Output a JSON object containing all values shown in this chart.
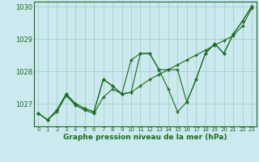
{
  "title": "Graphe pression niveau de la mer (hPa)",
  "bg_color": "#cce9f0",
  "grid_color": "#99ccbb",
  "line_color": "#1a6b1a",
  "marker_color": "#1a6b1a",
  "hours": [
    0,
    1,
    2,
    3,
    4,
    5,
    6,
    7,
    8,
    9,
    10,
    11,
    12,
    13,
    14,
    15,
    16,
    17,
    18,
    19,
    20,
    21,
    22,
    23
  ],
  "line1": [
    1026.7,
    1026.5,
    1026.8,
    1027.3,
    1027.0,
    1026.85,
    1026.75,
    1027.75,
    1027.55,
    1027.3,
    1027.35,
    1028.55,
    1028.55,
    1028.05,
    1027.45,
    1026.75,
    1027.05,
    1027.75,
    1028.55,
    1028.85,
    1028.55,
    1029.15,
    1029.55,
    1030.0
  ],
  "line2": [
    1026.7,
    1026.5,
    1026.8,
    1027.3,
    1027.0,
    1026.85,
    1026.75,
    1027.75,
    1027.55,
    1027.3,
    1028.35,
    1028.55,
    1028.55,
    1028.05,
    1028.05,
    1028.05,
    1027.05,
    1027.75,
    1028.55,
    1028.85,
    1028.55,
    1029.15,
    1029.55,
    1030.0
  ],
  "line3": [
    1026.7,
    1026.5,
    1026.75,
    1027.25,
    1026.95,
    1026.8,
    1026.7,
    1027.2,
    1027.45,
    1027.3,
    1027.35,
    1027.55,
    1027.75,
    1027.9,
    1028.05,
    1028.2,
    1028.35,
    1028.5,
    1028.65,
    1028.8,
    1028.95,
    1029.1,
    1029.4,
    1029.95
  ],
  "ylim": [
    1026.3,
    1030.15
  ],
  "yticks": [
    1027,
    1028,
    1029,
    1030
  ],
  "xticks": [
    0,
    1,
    2,
    3,
    4,
    5,
    6,
    7,
    8,
    9,
    10,
    11,
    12,
    13,
    14,
    15,
    16,
    17,
    18,
    19,
    20,
    21,
    22,
    23
  ]
}
